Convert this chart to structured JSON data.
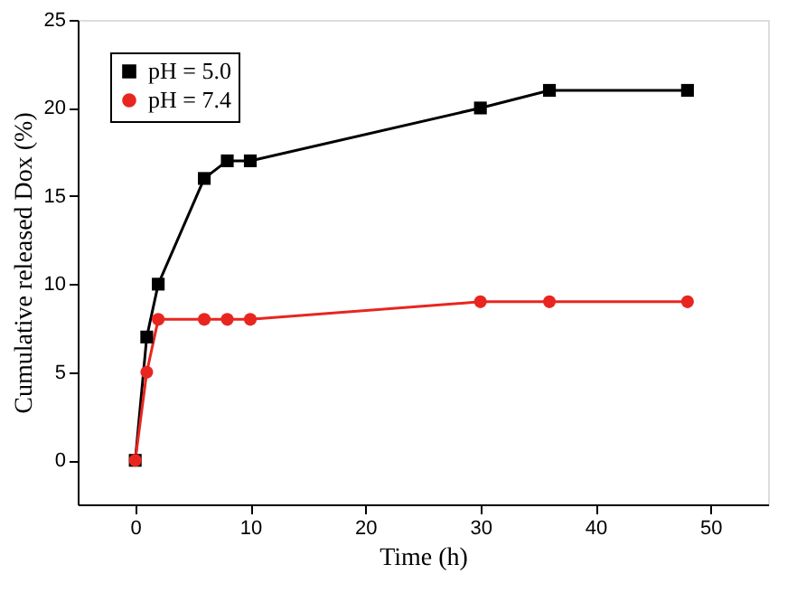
{
  "chart_data": {
    "type": "line",
    "xlabel": "Time (h)",
    "ylabel": "Cumulative released Dox (%)",
    "xlim": [
      -5,
      55
    ],
    "xticks": [
      0,
      10,
      20,
      30,
      40,
      50
    ],
    "ylim": [
      -2.5,
      25
    ],
    "yticks": [
      0,
      5,
      10,
      15,
      20,
      25
    ],
    "grid": false,
    "legend": "top left",
    "line_style": "solid",
    "series": [
      {
        "name": "pH = 5.0",
        "color": "#000000",
        "marker": "square",
        "x": [
          0,
          1,
          2,
          6,
          8,
          10,
          30,
          36,
          48
        ],
        "values": [
          0,
          7,
          10,
          16,
          17,
          17,
          20,
          21,
          21
        ]
      },
      {
        "name": "pH = 7.4",
        "color": "#e8261f",
        "marker": "circle",
        "x": [
          0,
          1,
          2,
          6,
          8,
          10,
          30,
          36,
          48
        ],
        "values": [
          0,
          5,
          8,
          8,
          8,
          8,
          9,
          9,
          9
        ]
      }
    ]
  }
}
